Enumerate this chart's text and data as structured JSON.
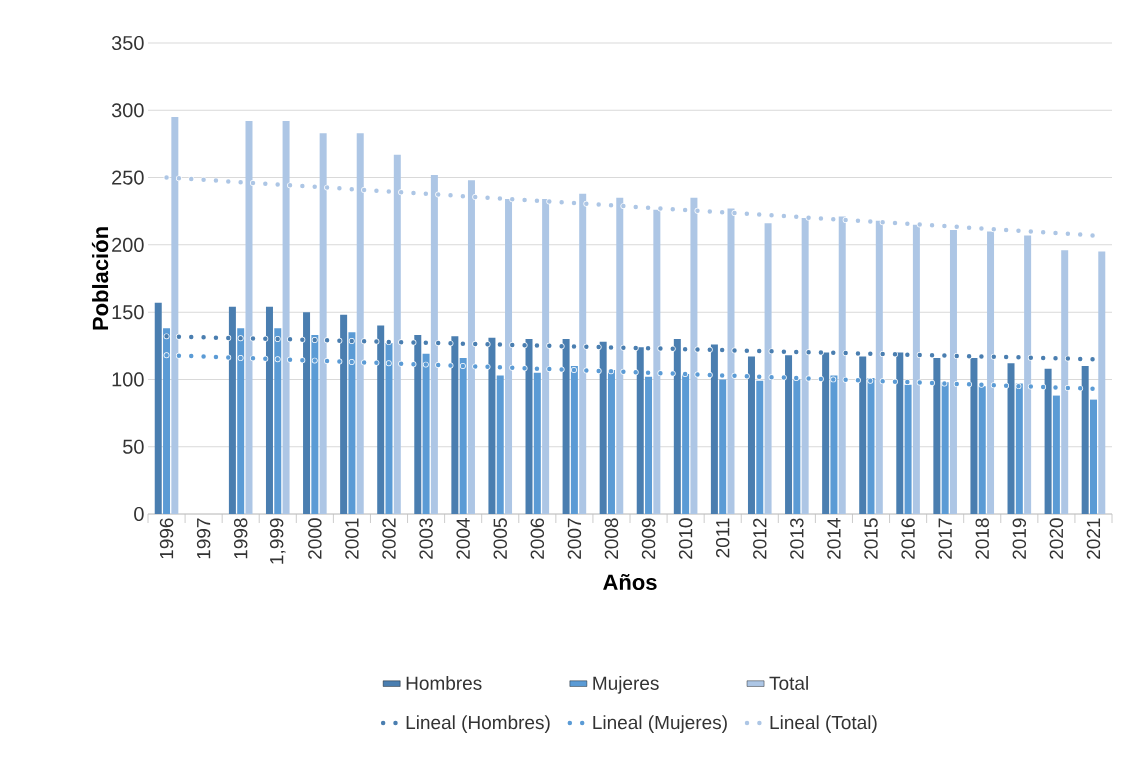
{
  "chart_data": {
    "type": "bar",
    "xlabel": "Años",
    "ylabel": "Población",
    "categories": [
      "1996",
      "1997",
      "1998",
      "1,999",
      "2000",
      "2001",
      "2002",
      "2003",
      "2004",
      "2005",
      "2006",
      "2007",
      "2008",
      "2009",
      "2010",
      "2011",
      "2012",
      "2013",
      "2014",
      "2015",
      "2016",
      "2017",
      "2018",
      "2019",
      "2020",
      "2021"
    ],
    "ylim": [
      0,
      350
    ],
    "yticks": [
      0,
      50,
      100,
      150,
      200,
      250,
      300,
      350
    ],
    "grid": "y",
    "legend": "bottom",
    "series": [
      {
        "name": "Hombres",
        "color": "#4a7eb0",
        "values": [
          157,
          null,
          154,
          154,
          150,
          148,
          140,
          133,
          132,
          131,
          130,
          130,
          128,
          124,
          130,
          126,
          117,
          118,
          120,
          117,
          120,
          116,
          116,
          112,
          108,
          110
        ]
      },
      {
        "name": "Mujeres",
        "color": "#5b9bd5",
        "values": [
          138,
          null,
          138,
          138,
          133,
          135,
          127,
          119,
          116,
          103,
          105,
          110,
          107,
          102,
          104,
          100,
          99,
          100,
          103,
          101,
          96,
          98,
          95,
          97,
          88,
          85
        ]
      },
      {
        "name": "Total",
        "color": "#adc6e5",
        "values": [
          295,
          null,
          292,
          292,
          283,
          283,
          267,
          252,
          248,
          234,
          234,
          238,
          235,
          226,
          235,
          227,
          216,
          220,
          221,
          218,
          215,
          211,
          210,
          207,
          196,
          195
        ]
      },
      {
        "name": "Lineal (Hombres)",
        "type": "line",
        "line_style": "dotted",
        "color": "#4a7eb0",
        "values": [
          132,
          131.3,
          130.6,
          130,
          129.3,
          128.6,
          127.9,
          127.2,
          126.6,
          125.9,
          125.2,
          124.5,
          123.8,
          123.2,
          122.5,
          121.8,
          121.1,
          120.4,
          119.8,
          119.1,
          118.4,
          117.7,
          117,
          116.4,
          115.7,
          115
        ]
      },
      {
        "name": "Lineal (Mujeres)",
        "type": "line",
        "line_style": "dotted",
        "color": "#5b9bd5",
        "values": [
          118,
          117,
          116,
          115,
          114,
          113,
          112,
          111,
          110,
          109,
          108,
          107,
          106,
          105,
          104,
          103,
          102,
          101,
          100,
          99,
          98,
          97,
          96,
          95,
          94,
          93
        ]
      },
      {
        "name": "Lineal (Total)",
        "type": "line",
        "line_style": "dotted",
        "color": "#adc6e5",
        "values": [
          250,
          248.3,
          246.6,
          244.8,
          243.1,
          241.4,
          239.7,
          238,
          236.2,
          234.5,
          232.8,
          231.1,
          229.4,
          227.6,
          225.9,
          224.2,
          222.5,
          220.8,
          219,
          217.3,
          215.6,
          213.9,
          212.2,
          210.4,
          208.7,
          207
        ]
      }
    ]
  }
}
